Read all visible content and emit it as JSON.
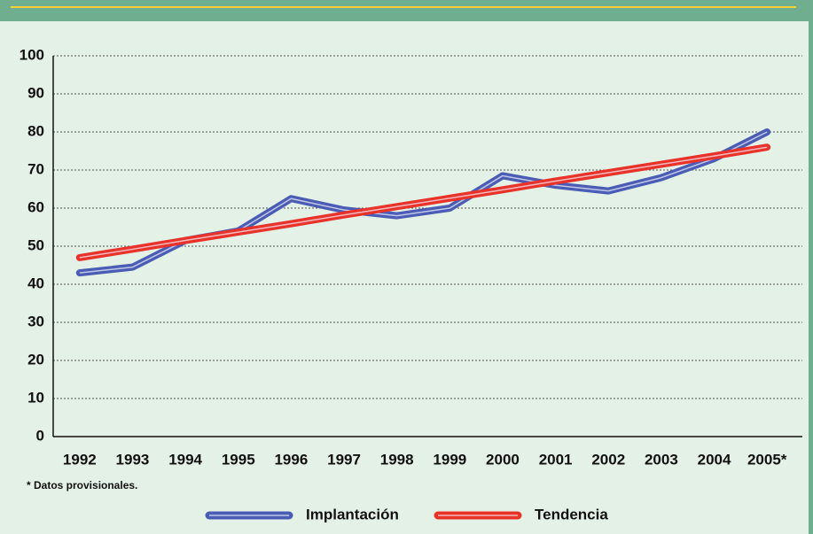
{
  "chart_data": {
    "type": "line",
    "categories": [
      "1992",
      "1993",
      "1994",
      "1995",
      "1996",
      "1997",
      "1998",
      "1999",
      "2000",
      "2001",
      "2002",
      "2003",
      "2004",
      "2005*"
    ],
    "series": [
      {
        "name": "Implantación",
        "color": "#4a5cb4",
        "values": [
          43,
          44.5,
          51.5,
          54,
          62.5,
          59.5,
          58,
          60,
          68.5,
          66,
          64.5,
          68,
          73,
          80
        ]
      },
      {
        "name": "Tendencia",
        "color": "#e8322a",
        "values": [
          47,
          49.2,
          51.5,
          53.7,
          55.9,
          58.2,
          60.4,
          62.6,
          64.8,
          67.1,
          69.3,
          71.5,
          73.7,
          76
        ]
      }
    ],
    "ylim": [
      0,
      100
    ],
    "yticks": [
      0,
      10,
      20,
      30,
      40,
      50,
      60,
      70,
      80,
      90,
      100
    ],
    "grid": true,
    "note": "* Datos provisionales."
  }
}
